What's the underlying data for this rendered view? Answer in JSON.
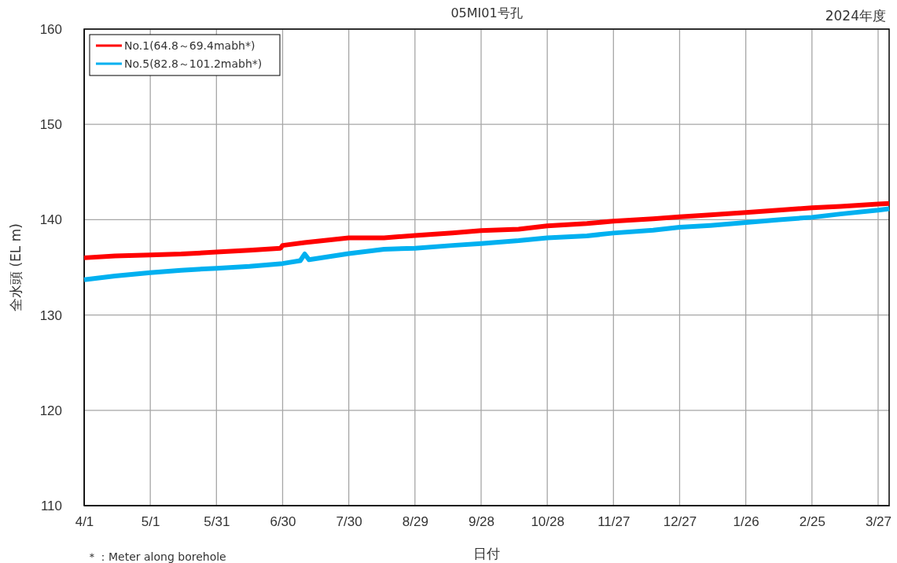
{
  "chart_data": {
    "type": "line",
    "title": "05MI01号孔",
    "xlabel": "日付",
    "ylabel": "全水頭 (EL m)",
    "annotations": [
      "2024年度",
      "＊：Meter along borehole"
    ],
    "xlim": [
      "2024-04-01",
      "2025-04-01"
    ],
    "xticks": [
      {
        "value": "2024-04-01",
        "label": "4/1"
      },
      {
        "value": "2024-05-01",
        "label": "5/1"
      },
      {
        "value": "2024-05-31",
        "label": "5/31"
      },
      {
        "value": "2024-06-30",
        "label": "6/30"
      },
      {
        "value": "2024-07-30",
        "label": "7/30"
      },
      {
        "value": "2024-08-29",
        "label": "8/29"
      },
      {
        "value": "2024-09-28",
        "label": "9/28"
      },
      {
        "value": "2024-10-28",
        "label": "10/28"
      },
      {
        "value": "2024-11-27",
        "label": "11/27"
      },
      {
        "value": "2024-12-27",
        "label": "12/27"
      },
      {
        "value": "2025-01-26",
        "label": "1/26"
      },
      {
        "value": "2025-02-25",
        "label": "2/25"
      },
      {
        "value": "2025-03-27",
        "label": "3/27"
      }
    ],
    "ylim": [
      110,
      160
    ],
    "yticks": [
      110,
      120,
      130,
      140,
      150,
      160
    ],
    "grid": true,
    "legend": "top left",
    "marker": "none",
    "line_style": "solid",
    "series": [
      {
        "name": "No.1(64.8～69.4mabh*)",
        "color": "#ff0000",
        "x": [
          "2024-04-01",
          "2024-04-15",
          "2024-05-01",
          "2024-05-15",
          "2024-05-31",
          "2024-06-15",
          "2024-06-29",
          "2024-06-30",
          "2024-07-10",
          "2024-07-30",
          "2024-08-15",
          "2024-08-29",
          "2024-09-15",
          "2024-09-28",
          "2024-10-15",
          "2024-10-28",
          "2024-11-15",
          "2024-11-27",
          "2024-12-15",
          "2024-12-27",
          "2025-01-10",
          "2025-01-26",
          "2025-02-10",
          "2025-02-25",
          "2025-03-10",
          "2025-03-27",
          "2025-04-01"
        ],
        "values": [
          136.0,
          136.2,
          136.3,
          136.4,
          136.6,
          136.8,
          137.0,
          137.3,
          137.6,
          138.1,
          138.1,
          138.35,
          138.6,
          138.85,
          139.0,
          139.35,
          139.6,
          139.85,
          140.1,
          140.3,
          140.5,
          140.75,
          141.0,
          141.25,
          141.4,
          141.65,
          141.7
        ]
      },
      {
        "name": "No.5(82.8～101.2mabh*)",
        "color": "#00b0f0",
        "x": [
          "2024-04-01",
          "2024-04-15",
          "2024-05-01",
          "2024-05-15",
          "2024-05-31",
          "2024-06-15",
          "2024-06-30",
          "2024-07-08",
          "2024-07-10",
          "2024-07-12",
          "2024-07-30",
          "2024-08-15",
          "2024-08-29",
          "2024-09-15",
          "2024-09-28",
          "2024-10-15",
          "2024-10-28",
          "2024-11-15",
          "2024-11-27",
          "2024-12-15",
          "2024-12-27",
          "2025-01-10",
          "2025-01-26",
          "2025-02-10",
          "2025-02-25",
          "2025-03-10",
          "2025-03-27",
          "2025-04-01"
        ],
        "values": [
          133.7,
          134.1,
          134.45,
          134.7,
          134.9,
          135.1,
          135.4,
          135.7,
          136.4,
          135.8,
          136.45,
          136.9,
          137.0,
          137.3,
          137.5,
          137.8,
          138.1,
          138.3,
          138.6,
          138.9,
          139.2,
          139.4,
          139.7,
          140.0,
          140.25,
          140.6,
          141.0,
          141.15
        ]
      }
    ]
  }
}
